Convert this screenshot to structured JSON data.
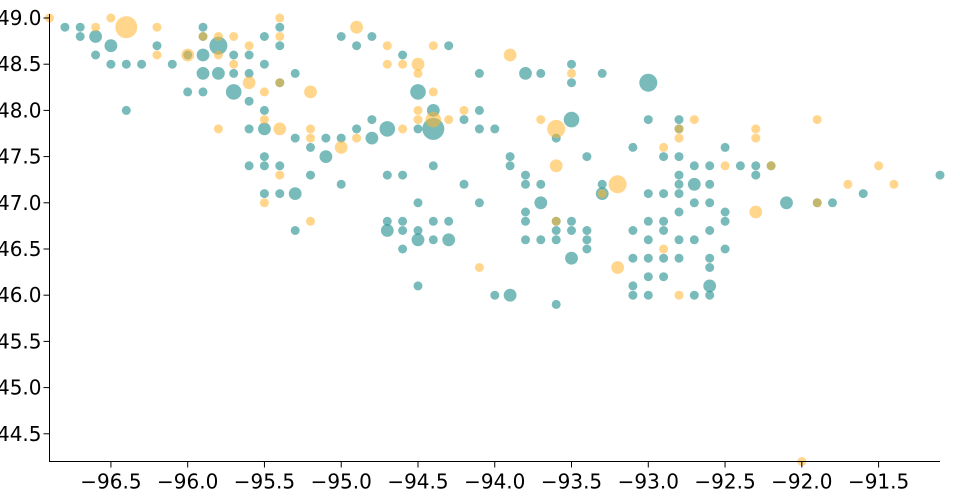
{
  "chart_data": {
    "type": "scatter",
    "title": "",
    "xlabel": "",
    "ylabel": "",
    "xlim": [
      -96.9,
      -91.1
    ],
    "ylim": [
      44.2,
      49.0
    ],
    "x_ticks": [
      -96.5,
      -96.0,
      -95.5,
      -95.0,
      -94.5,
      -94.0,
      -93.5,
      -93.0,
      -92.5,
      -92.0,
      -91.5
    ],
    "x_tick_labels": [
      "−96.5",
      "−96.0",
      "−95.5",
      "−95.0",
      "−94.5",
      "−94.0",
      "−93.5",
      "−93.0",
      "−92.5",
      "−92.0",
      "−91.5"
    ],
    "y_ticks": [
      44.5,
      45.0,
      45.5,
      46.0,
      46.5,
      47.0,
      47.5,
      48.0,
      48.5,
      49.0
    ],
    "y_tick_labels": [
      "44.5",
      "45.0",
      "45.5",
      "46.0",
      "46.5",
      "47.0",
      "47.5",
      "48.0",
      "48.5",
      "49.0"
    ],
    "grid": false,
    "size_encoding": "relative magnitude",
    "colors": {
      "teal": "#1f8e8c",
      "orange": "#ffb52e"
    },
    "series": [
      {
        "color_key": "teal",
        "points": [
          [
            -96.8,
            48.9,
            1
          ],
          [
            -96.7,
            48.9,
            1
          ],
          [
            -96.7,
            48.8,
            1
          ],
          [
            -96.6,
            48.8,
            2
          ],
          [
            -96.6,
            48.6,
            1
          ],
          [
            -96.5,
            48.7,
            2
          ],
          [
            -96.5,
            48.5,
            1
          ],
          [
            -96.4,
            48.5,
            1
          ],
          [
            -96.4,
            48.0,
            1
          ],
          [
            -96.3,
            48.5,
            1
          ],
          [
            -96.2,
            48.7,
            1
          ],
          [
            -96.1,
            48.5,
            1
          ],
          [
            -96.0,
            48.6,
            1
          ],
          [
            -95.9,
            48.6,
            2
          ],
          [
            -96.0,
            48.2,
            1
          ],
          [
            -95.9,
            48.2,
            1
          ],
          [
            -95.9,
            48.4,
            2
          ],
          [
            -95.9,
            48.8,
            1
          ],
          [
            -95.9,
            48.9,
            1
          ],
          [
            -95.8,
            48.7,
            4
          ],
          [
            -95.8,
            48.4,
            2
          ],
          [
            -95.7,
            48.2,
            3
          ],
          [
            -95.7,
            48.4,
            1
          ],
          [
            -95.7,
            48.6,
            1
          ],
          [
            -95.6,
            48.6,
            1
          ],
          [
            -95.6,
            48.4,
            1
          ],
          [
            -95.6,
            48.1,
            1
          ],
          [
            -95.6,
            47.8,
            1
          ],
          [
            -95.6,
            47.4,
            1
          ],
          [
            -95.5,
            48.8,
            1
          ],
          [
            -95.5,
            48.5,
            1
          ],
          [
            -95.5,
            48.0,
            1
          ],
          [
            -95.5,
            47.8,
            2
          ],
          [
            -95.5,
            47.5,
            1
          ],
          [
            -95.5,
            47.4,
            1
          ],
          [
            -95.5,
            47.1,
            1
          ],
          [
            -95.4,
            48.9,
            1
          ],
          [
            -95.4,
            48.7,
            1
          ],
          [
            -95.4,
            48.3,
            1
          ],
          [
            -95.4,
            47.4,
            1
          ],
          [
            -95.4,
            47.1,
            1
          ],
          [
            -95.3,
            48.4,
            1
          ],
          [
            -95.3,
            47.7,
            1
          ],
          [
            -95.3,
            47.1,
            2
          ],
          [
            -95.3,
            46.7,
            1
          ],
          [
            -95.2,
            47.6,
            1
          ],
          [
            -95.2,
            47.3,
            1
          ],
          [
            -95.1,
            47.5,
            2
          ],
          [
            -95.1,
            47.7,
            1
          ],
          [
            -95.0,
            47.7,
            1
          ],
          [
            -95.0,
            47.2,
            1
          ],
          [
            -95.0,
            48.8,
            1
          ],
          [
            -94.9,
            47.8,
            1
          ],
          [
            -94.9,
            48.7,
            1
          ],
          [
            -94.8,
            47.9,
            1
          ],
          [
            -94.8,
            47.7,
            2
          ],
          [
            -94.8,
            48.8,
            1
          ],
          [
            -94.7,
            47.8,
            3
          ],
          [
            -94.7,
            47.3,
            1
          ],
          [
            -94.7,
            46.8,
            1
          ],
          [
            -94.7,
            46.7,
            2
          ],
          [
            -94.6,
            48.6,
            1
          ],
          [
            -94.6,
            47.3,
            1
          ],
          [
            -94.6,
            46.8,
            1
          ],
          [
            -94.6,
            46.7,
            1
          ],
          [
            -94.6,
            46.5,
            1
          ],
          [
            -94.5,
            48.2,
            3
          ],
          [
            -94.5,
            47.8,
            1
          ],
          [
            -94.5,
            47.0,
            1
          ],
          [
            -94.5,
            46.7,
            1
          ],
          [
            -94.5,
            46.6,
            2
          ],
          [
            -94.5,
            46.1,
            1
          ],
          [
            -94.4,
            48.0,
            2
          ],
          [
            -94.4,
            47.8,
            6
          ],
          [
            -94.4,
            47.4,
            1
          ],
          [
            -94.4,
            46.8,
            1
          ],
          [
            -94.4,
            46.6,
            1
          ],
          [
            -94.3,
            48.7,
            1
          ],
          [
            -94.3,
            46.8,
            1
          ],
          [
            -94.3,
            46.6,
            2
          ],
          [
            -94.2,
            47.9,
            1
          ],
          [
            -94.2,
            47.2,
            1
          ],
          [
            -94.1,
            48.4,
            1
          ],
          [
            -94.1,
            48.0,
            1
          ],
          [
            -94.1,
            47.8,
            1
          ],
          [
            -94.1,
            47.0,
            1
          ],
          [
            -94.0,
            47.8,
            1
          ],
          [
            -94.0,
            46.0,
            1
          ],
          [
            -93.9,
            47.5,
            1
          ],
          [
            -93.9,
            47.4,
            1
          ],
          [
            -93.9,
            46.0,
            2
          ],
          [
            -93.8,
            48.4,
            2
          ],
          [
            -93.8,
            47.3,
            1
          ],
          [
            -93.8,
            47.2,
            1
          ],
          [
            -93.8,
            46.9,
            1
          ],
          [
            -93.8,
            46.8,
            1
          ],
          [
            -93.8,
            46.6,
            1
          ],
          [
            -93.7,
            48.4,
            1
          ],
          [
            -93.7,
            47.2,
            1
          ],
          [
            -93.7,
            47.0,
            2
          ],
          [
            -93.7,
            46.6,
            1
          ],
          [
            -93.6,
            47.7,
            1
          ],
          [
            -93.6,
            46.8,
            1
          ],
          [
            -93.6,
            46.7,
            1
          ],
          [
            -93.6,
            46.6,
            1
          ],
          [
            -93.6,
            45.9,
            1
          ],
          [
            -93.5,
            47.9,
            3
          ],
          [
            -93.5,
            48.5,
            1
          ],
          [
            -93.5,
            48.3,
            1
          ],
          [
            -93.5,
            46.8,
            1
          ],
          [
            -93.5,
            46.7,
            1
          ],
          [
            -93.5,
            46.4,
            2
          ],
          [
            -93.4,
            47.5,
            1
          ],
          [
            -93.4,
            46.7,
            1
          ],
          [
            -93.4,
            46.6,
            1
          ],
          [
            -93.4,
            46.5,
            1
          ],
          [
            -93.3,
            48.4,
            1
          ],
          [
            -93.3,
            47.2,
            1
          ],
          [
            -93.3,
            47.1,
            2
          ],
          [
            -93.1,
            47.6,
            1
          ],
          [
            -93.1,
            46.7,
            1
          ],
          [
            -93.1,
            46.4,
            1
          ],
          [
            -93.1,
            46.1,
            1
          ],
          [
            -93.1,
            46.0,
            1
          ],
          [
            -93.0,
            48.3,
            4
          ],
          [
            -93.0,
            47.9,
            1
          ],
          [
            -93.0,
            47.1,
            1
          ],
          [
            -93.0,
            46.8,
            1
          ],
          [
            -93.0,
            46.6,
            1
          ],
          [
            -93.0,
            46.4,
            1
          ],
          [
            -93.0,
            46.2,
            1
          ],
          [
            -93.0,
            46.0,
            1
          ],
          [
            -92.9,
            47.5,
            1
          ],
          [
            -92.9,
            47.1,
            1
          ],
          [
            -92.9,
            46.8,
            1
          ],
          [
            -92.9,
            46.7,
            1
          ],
          [
            -92.9,
            46.4,
            1
          ],
          [
            -92.9,
            46.2,
            1
          ],
          [
            -92.8,
            47.9,
            1
          ],
          [
            -92.8,
            47.8,
            1
          ],
          [
            -92.8,
            47.5,
            1
          ],
          [
            -92.8,
            47.3,
            1
          ],
          [
            -92.8,
            47.2,
            1
          ],
          [
            -92.8,
            47.1,
            1
          ],
          [
            -92.8,
            46.9,
            1
          ],
          [
            -92.8,
            46.6,
            1
          ],
          [
            -92.8,
            46.4,
            1
          ],
          [
            -92.7,
            47.4,
            1
          ],
          [
            -92.7,
            47.2,
            2
          ],
          [
            -92.7,
            47.0,
            1
          ],
          [
            -92.7,
            46.6,
            1
          ],
          [
            -92.7,
            46.0,
            1
          ],
          [
            -92.6,
            47.4,
            1
          ],
          [
            -92.6,
            47.2,
            1
          ],
          [
            -92.6,
            47.0,
            1
          ],
          [
            -92.6,
            46.7,
            1
          ],
          [
            -92.6,
            46.4,
            1
          ],
          [
            -92.6,
            46.3,
            1
          ],
          [
            -92.6,
            46.1,
            2
          ],
          [
            -92.6,
            46.0,
            1
          ],
          [
            -92.5,
            47.6,
            1
          ],
          [
            -92.5,
            46.9,
            1
          ],
          [
            -92.5,
            46.8,
            1
          ],
          [
            -92.5,
            46.5,
            1
          ],
          [
            -92.4,
            47.4,
            1
          ],
          [
            -92.3,
            47.4,
            1
          ],
          [
            -92.3,
            47.3,
            1
          ],
          [
            -92.2,
            47.4,
            1
          ],
          [
            -92.1,
            47.0,
            2
          ],
          [
            -91.9,
            47.0,
            1
          ],
          [
            -91.8,
            47.0,
            1
          ],
          [
            -91.6,
            47.1,
            1
          ],
          [
            -91.1,
            47.3,
            1
          ]
        ]
      },
      {
        "color_key": "orange",
        "points": [
          [
            -96.9,
            49.0,
            1
          ],
          [
            -96.6,
            48.9,
            1
          ],
          [
            -96.5,
            49.0,
            1
          ],
          [
            -96.4,
            48.9,
            6
          ],
          [
            -96.2,
            48.6,
            1
          ],
          [
            -96.2,
            48.9,
            1
          ],
          [
            -96.0,
            48.6,
            2
          ],
          [
            -95.9,
            48.8,
            1
          ],
          [
            -95.8,
            48.8,
            1
          ],
          [
            -95.8,
            48.6,
            1
          ],
          [
            -95.8,
            47.8,
            1
          ],
          [
            -95.7,
            48.8,
            1
          ],
          [
            -95.7,
            48.5,
            1
          ],
          [
            -95.6,
            48.3,
            2
          ],
          [
            -95.6,
            48.7,
            1
          ],
          [
            -95.5,
            48.2,
            1
          ],
          [
            -95.5,
            47.9,
            1
          ],
          [
            -95.5,
            47.0,
            1
          ],
          [
            -95.4,
            49.0,
            1
          ],
          [
            -95.4,
            48.8,
            1
          ],
          [
            -95.4,
            48.3,
            1
          ],
          [
            -95.4,
            47.8,
            2
          ],
          [
            -95.4,
            47.3,
            1
          ],
          [
            -95.2,
            48.2,
            2
          ],
          [
            -95.2,
            47.8,
            1
          ],
          [
            -95.2,
            47.7,
            1
          ],
          [
            -95.2,
            46.8,
            1
          ],
          [
            -95.0,
            47.6,
            2
          ],
          [
            -94.9,
            48.9,
            2
          ],
          [
            -94.9,
            47.7,
            1
          ],
          [
            -94.7,
            48.7,
            1
          ],
          [
            -94.7,
            48.5,
            1
          ],
          [
            -94.6,
            48.5,
            1
          ],
          [
            -94.6,
            47.8,
            1
          ],
          [
            -94.5,
            48.5,
            2
          ],
          [
            -94.5,
            48.4,
            1
          ],
          [
            -94.5,
            48.0,
            1
          ],
          [
            -94.5,
            47.9,
            1
          ],
          [
            -94.4,
            48.7,
            1
          ],
          [
            -94.4,
            48.2,
            1
          ],
          [
            -94.4,
            47.9,
            3
          ],
          [
            -94.3,
            47.9,
            1
          ],
          [
            -94.2,
            48.0,
            1
          ],
          [
            -94.1,
            46.3,
            1
          ],
          [
            -93.9,
            48.6,
            2
          ],
          [
            -93.7,
            47.9,
            1
          ],
          [
            -93.6,
            47.8,
            4
          ],
          [
            -93.6,
            47.4,
            2
          ],
          [
            -93.6,
            46.8,
            1
          ],
          [
            -93.5,
            48.4,
            1
          ],
          [
            -93.3,
            47.1,
            1
          ],
          [
            -93.2,
            47.2,
            4
          ],
          [
            -93.2,
            46.3,
            2
          ],
          [
            -92.9,
            47.6,
            1
          ],
          [
            -92.9,
            46.5,
            1
          ],
          [
            -92.8,
            47.8,
            1
          ],
          [
            -92.8,
            47.7,
            1
          ],
          [
            -92.8,
            46.0,
            1
          ],
          [
            -92.7,
            47.9,
            1
          ],
          [
            -92.5,
            47.4,
            1
          ],
          [
            -92.3,
            47.7,
            1
          ],
          [
            -92.3,
            47.8,
            1
          ],
          [
            -92.3,
            46.9,
            2
          ],
          [
            -92.2,
            47.4,
            1
          ],
          [
            -92.0,
            44.2,
            1
          ],
          [
            -91.9,
            47.9,
            1
          ],
          [
            -91.9,
            47.0,
            1
          ],
          [
            -91.7,
            47.2,
            1
          ],
          [
            -91.5,
            47.4,
            1
          ],
          [
            -91.4,
            47.2,
            1
          ]
        ]
      }
    ]
  }
}
